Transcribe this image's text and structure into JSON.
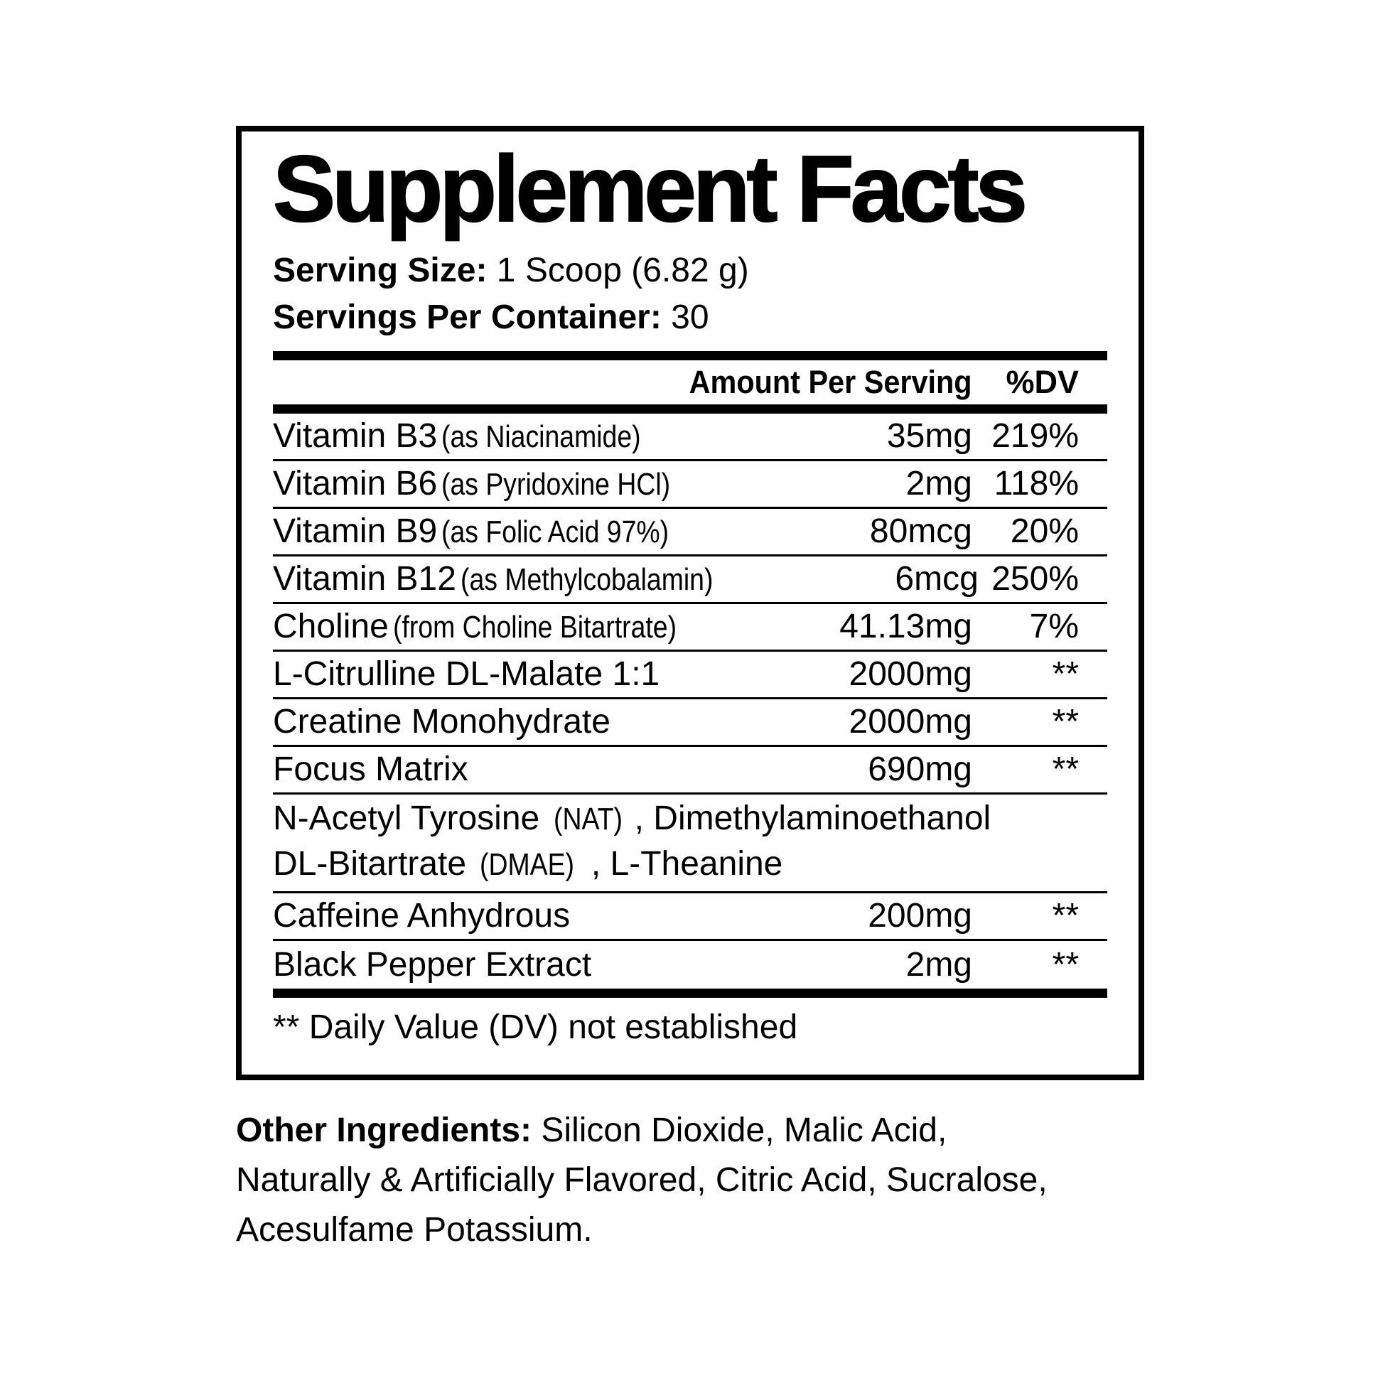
{
  "label": {
    "title": "Supplement Facts",
    "serving_size_label": "Serving Size:",
    "serving_size_value": "1 Scoop (6.82 g)",
    "servings_label": "Servings Per Container:",
    "servings_value": "30",
    "columns": {
      "amount": "Amount Per Serving",
      "dv": "%DV"
    },
    "rows": [
      {
        "name": "Vitamin B3",
        "note": "(as Niacinamide)",
        "amount": "35mg",
        "dv": "219%"
      },
      {
        "name": "Vitamin B6",
        "note": "(as Pyridoxine HCl)",
        "amount": "2mg",
        "dv": "118%"
      },
      {
        "name": "Vitamin B9",
        "note": "(as Folic Acid 97%)",
        "amount": "80mcg",
        "dv": "20%"
      },
      {
        "name": "Vitamin B12",
        "note": "(as Methylcobalamin)",
        "amount": "6mcg",
        "dv": "250%"
      },
      {
        "name": "Choline",
        "note": "(from Choline Bitartrate)",
        "amount": "41.13mg",
        "dv": "7%"
      },
      {
        "name": "L-Citrulline DL-Malate 1:1",
        "note": "",
        "amount": "2000mg",
        "dv": "**"
      },
      {
        "name": "Creatine Monohydrate",
        "note": "",
        "amount": "2000mg",
        "dv": "**"
      },
      {
        "name": "Focus Matrix",
        "note": "",
        "amount": "690mg",
        "dv": "**"
      },
      {
        "name": "Caffeine Anhydrous",
        "note": "",
        "amount": "200mg",
        "dv": "**"
      },
      {
        "name": "Black Pepper Extract",
        "note": "",
        "amount": "2mg",
        "dv": "**"
      }
    ],
    "blend": {
      "line1_pre": "N-Acetyl Tyrosine ",
      "line1_cond": "(NAT)",
      "line1_post": ", Dimethylaminoethanol",
      "line2_pre": "DL-Bitartrate ",
      "line2_cond": "(DMAE)",
      "line2_post": ", L-Theanine"
    },
    "footnote": "** Daily Value (DV) not established"
  },
  "other_ingredients": {
    "label": "Other Ingredients:",
    "line1": " Silicon Dioxide, Malic Acid,",
    "line2": "Naturally & Artificially Flavored, Citric Acid, Sucralose,",
    "line3": "Acesulfame Potassium."
  }
}
